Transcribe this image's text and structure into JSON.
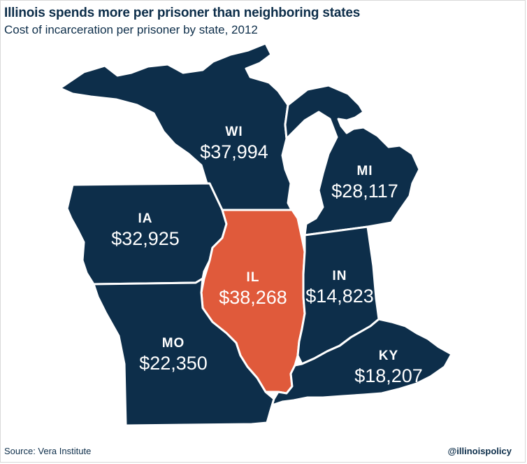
{
  "title": "Illinois spends more per prisoner than neighboring states",
  "subtitle": "Cost of incarceration per prisoner by state, 2012",
  "states": {
    "WI": {
      "abbr": "WI",
      "value": "$37,994"
    },
    "MI": {
      "abbr": "MI",
      "value": "$28,117"
    },
    "IA": {
      "abbr": "IA",
      "value": "$32,925"
    },
    "IL": {
      "abbr": "IL",
      "value": "$38,268"
    },
    "IN": {
      "abbr": "IN",
      "value": "$14,823"
    },
    "MO": {
      "abbr": "MO",
      "value": "$22,350"
    },
    "KY": {
      "abbr": "KY",
      "value": "$18,207"
    }
  },
  "colors": {
    "neighbor": "#0d2e4a",
    "highlight": "#e05a3b",
    "border": "#ffffff"
  },
  "source": "Source: Vera Institute",
  "handle": "@illinoispolicy"
}
